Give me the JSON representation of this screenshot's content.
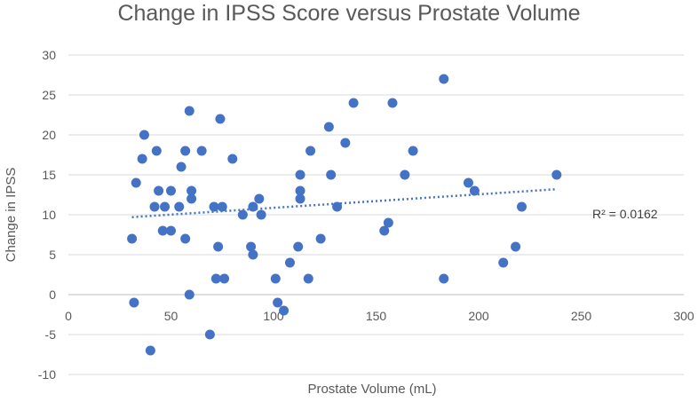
{
  "chart_data": {
    "type": "scatter",
    "title": "Change in IPSS Score versus Prostate Volume",
    "xlabel": "Prostate Volume (mL)",
    "ylabel": "Change in IPSS",
    "xlim": [
      0,
      300
    ],
    "ylim": [
      -10,
      30
    ],
    "xticks": [
      0,
      50,
      100,
      150,
      200,
      250,
      300
    ],
    "yticks": [
      -10,
      -5,
      0,
      5,
      10,
      15,
      20,
      25,
      30
    ],
    "grid": true,
    "series": [
      {
        "name": "Patients",
        "color": "#4472c4",
        "points": [
          [
            31,
            7
          ],
          [
            32,
            -1
          ],
          [
            33,
            14
          ],
          [
            36,
            17
          ],
          [
            37,
            20
          ],
          [
            40,
            -7
          ],
          [
            42,
            11
          ],
          [
            43,
            18
          ],
          [
            44,
            13
          ],
          [
            46,
            8
          ],
          [
            47,
            11
          ],
          [
            50,
            8
          ],
          [
            50,
            13
          ],
          [
            54,
            11
          ],
          [
            55,
            16
          ],
          [
            57,
            18
          ],
          [
            57,
            7
          ],
          [
            59,
            23
          ],
          [
            59,
            0
          ],
          [
            60,
            12
          ],
          [
            60,
            13
          ],
          [
            65,
            18
          ],
          [
            69,
            -5
          ],
          [
            71,
            11
          ],
          [
            72,
            2
          ],
          [
            73,
            6
          ],
          [
            74,
            22
          ],
          [
            75,
            11
          ],
          [
            76,
            2
          ],
          [
            80,
            17
          ],
          [
            85,
            10
          ],
          [
            89,
            6
          ],
          [
            90,
            11
          ],
          [
            90,
            5
          ],
          [
            93,
            12
          ],
          [
            94,
            10
          ],
          [
            101,
            2
          ],
          [
            102,
            -1
          ],
          [
            105,
            -2
          ],
          [
            108,
            4
          ],
          [
            112,
            6
          ],
          [
            113,
            13
          ],
          [
            113,
            15
          ],
          [
            113,
            12
          ],
          [
            117,
            2
          ],
          [
            118,
            18
          ],
          [
            123,
            7
          ],
          [
            127,
            21
          ],
          [
            128,
            15
          ],
          [
            131,
            11
          ],
          [
            135,
            19
          ],
          [
            139,
            24
          ],
          [
            154,
            8
          ],
          [
            156,
            9
          ],
          [
            158,
            24
          ],
          [
            164,
            15
          ],
          [
            168,
            18
          ],
          [
            183,
            27
          ],
          [
            183,
            2
          ],
          [
            195,
            14
          ],
          [
            198,
            13
          ],
          [
            212,
            4
          ],
          [
            218,
            6
          ],
          [
            221,
            11
          ],
          [
            238,
            15
          ]
        ]
      }
    ],
    "trendline": {
      "type": "linear",
      "style": "dotted",
      "x_range": [
        31,
        238
      ],
      "y_start": 9.7,
      "y_end": 13.2,
      "r2_label": "R² = 0.0162"
    }
  }
}
